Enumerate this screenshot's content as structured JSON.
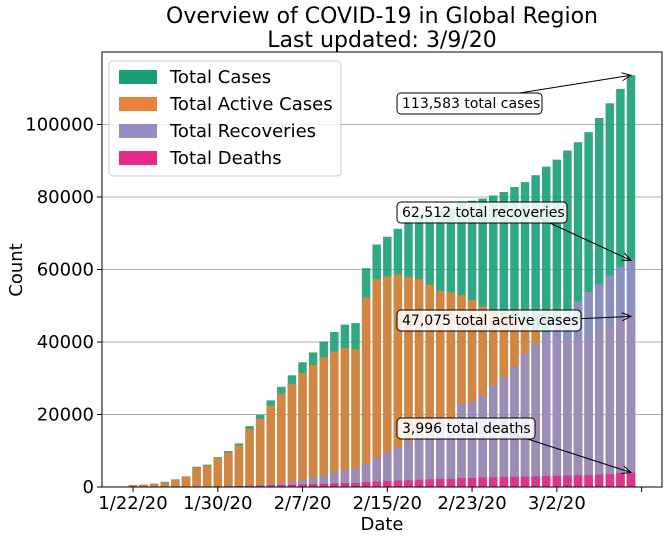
{
  "chart_data": {
    "type": "bar",
    "title": "Overview of COVID-19 in Global Region",
    "subtitle": "Last updated: 3/9/20",
    "xlabel": "Date",
    "ylabel": "Count",
    "ylim": [
      0,
      120000
    ],
    "yticks": [
      0,
      20000,
      40000,
      60000,
      80000,
      100000
    ],
    "grid": "horizontal",
    "legend_position": "top-left",
    "x_tick_labels": [
      "1/22/20",
      "1/30/20",
      "2/7/20",
      "2/15/20",
      "2/23/20",
      "3/2/20"
    ],
    "categories": [
      "1/22/20",
      "1/23/20",
      "1/24/20",
      "1/25/20",
      "1/26/20",
      "1/27/20",
      "1/28/20",
      "1/29/20",
      "1/30/20",
      "1/31/20",
      "2/1/20",
      "2/2/20",
      "2/3/20",
      "2/4/20",
      "2/5/20",
      "2/6/20",
      "2/7/20",
      "2/8/20",
      "2/9/20",
      "2/10/20",
      "2/11/20",
      "2/12/20",
      "2/13/20",
      "2/14/20",
      "2/15/20",
      "2/16/20",
      "2/17/20",
      "2/18/20",
      "2/19/20",
      "2/20/20",
      "2/21/20",
      "2/22/20",
      "2/23/20",
      "2/24/20",
      "2/25/20",
      "2/26/20",
      "2/27/20",
      "2/28/20",
      "2/29/20",
      "3/1/20",
      "3/2/20",
      "3/3/20",
      "3/4/20",
      "3/5/20",
      "3/6/20",
      "3/7/20",
      "3/8/20",
      "3/9/20"
    ],
    "series": [
      {
        "name": "Total Cases",
        "color": "#1b9e77",
        "values": [
          555,
          654,
          941,
          1434,
          2118,
          2927,
          5578,
          6166,
          8234,
          9927,
          12038,
          16787,
          19881,
          23892,
          27635,
          30817,
          34391,
          37120,
          40150,
          42762,
          44802,
          45221,
          60368,
          66885,
          69030,
          71224,
          73258,
          75136,
          75639,
          76197,
          76823,
          78579,
          78965,
          79568,
          80413,
          81395,
          82754,
          84120,
          86011,
          88369,
          90306,
          92840,
          95120,
          97886,
          101801,
          105847,
          109821,
          113583
        ]
      },
      {
        "name": "Total Active Cases",
        "color": "#e6823a",
        "values": [
          510,
          605,
          874,
          1331,
          1984,
          2775,
          5349,
          5950,
          7920,
          9512,
          11454,
          16031,
          18776,
          22455,
          25734,
          28498,
          31498,
          33700,
          35813,
          37405,
          38367,
          38026,
          52268,
          57354,
          58048,
          58658,
          57886,
          57400,
          55800,
          54053,
          53716,
          52948,
          51569,
          49810,
          48700,
          47400,
          45700,
          44400,
          43240,
          42130,
          41000,
          40500,
          40600,
          41700,
          43000,
          44500,
          46000,
          47075
        ]
      },
      {
        "name": "Total Recoveries",
        "color": "#968dc5",
        "values": [
          28,
          30,
          36,
          39,
          52,
          61,
          107,
          126,
          143,
          222,
          284,
          472,
          623,
          852,
          1124,
          1487,
          2011,
          2616,
          3244,
          3946,
          4683,
          5150,
          6295,
          8058,
          9395,
          10865,
          12583,
          14352,
          16121,
          18177,
          18890,
          22886,
          23394,
          25227,
          27905,
          30384,
          33277,
          36711,
          39782,
          42716,
          45602,
          48229,
          51170,
          53797,
          55866,
          58359,
          60694,
          62512
        ]
      },
      {
        "name": "Total Deaths",
        "color": "#e7298a",
        "values": [
          17,
          18,
          26,
          42,
          56,
          82,
          131,
          133,
          171,
          213,
          259,
          362,
          426,
          492,
          564,
          634,
          719,
          806,
          908,
          1011,
          1113,
          1118,
          1371,
          1523,
          1666,
          1770,
          1868,
          2007,
          2122,
          2247,
          2251,
          2458,
          2469,
          2629,
          2708,
          2770,
          2814,
          2872,
          2941,
          2996,
          3085,
          3160,
          3254,
          3348,
          3460,
          3558,
          3802,
          3996
        ]
      }
    ],
    "annotations": [
      {
        "text": "113,583 total cases",
        "series": "Total Cases",
        "x": "3/9/20",
        "y": 113583
      },
      {
        "text": "62,512 total recoveries",
        "series": "Total Recoveries",
        "x": "3/9/20",
        "y": 62512
      },
      {
        "text": "47,075 total active cases",
        "series": "Total Active Cases",
        "x": "3/9/20",
        "y": 47075
      },
      {
        "text": "3,996 total deaths",
        "series": "Total Deaths",
        "x": "3/9/20",
        "y": 3996
      }
    ]
  }
}
